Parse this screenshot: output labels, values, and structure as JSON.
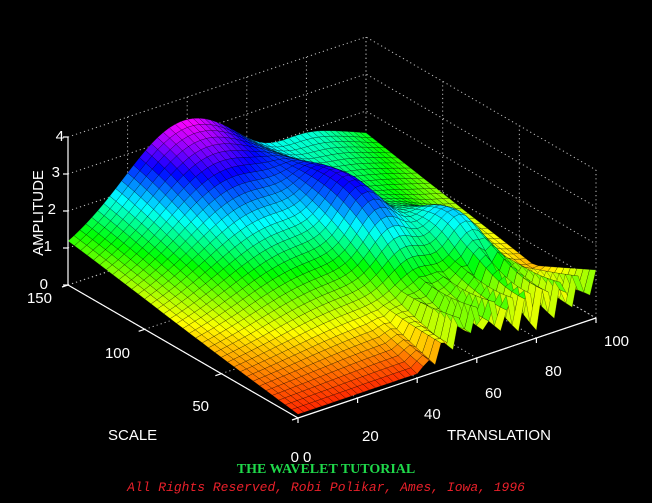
{
  "chart_data": {
    "type": "surface",
    "title": "",
    "xlabel": "TRANSLATION",
    "ylabel": "SCALE",
    "zlabel": "AMPLITUDE",
    "xlim": [
      0,
      100
    ],
    "ylim": [
      0,
      150
    ],
    "zlim": [
      0,
      4
    ],
    "x_ticks": [
      "0",
      "20",
      "40",
      "60",
      "80",
      "100"
    ],
    "y_ticks": [
      "0",
      "50",
      "100",
      "150"
    ],
    "z_ticks": [
      "0",
      "1",
      "2",
      "3",
      "4"
    ],
    "grid": true,
    "colormap": [
      "#ff0000",
      "#ff8000",
      "#ffff00",
      "#00ff00",
      "#00ffff",
      "#0000ff",
      "#ff00ff"
    ],
    "surface_peak": {
      "translation": 35,
      "scale": 150,
      "amplitude": 3.4
    },
    "secondary_peak": {
      "translation": 62,
      "scale": 80,
      "amplitude": 3.3
    },
    "small_scale_oscillation": {
      "amplitude": 1.2
    }
  },
  "credits": {
    "title": "THE WAVELET TUTORIAL",
    "line": "All Rights Reserved, Robi Polikar, Ames, Iowa, 1996"
  }
}
